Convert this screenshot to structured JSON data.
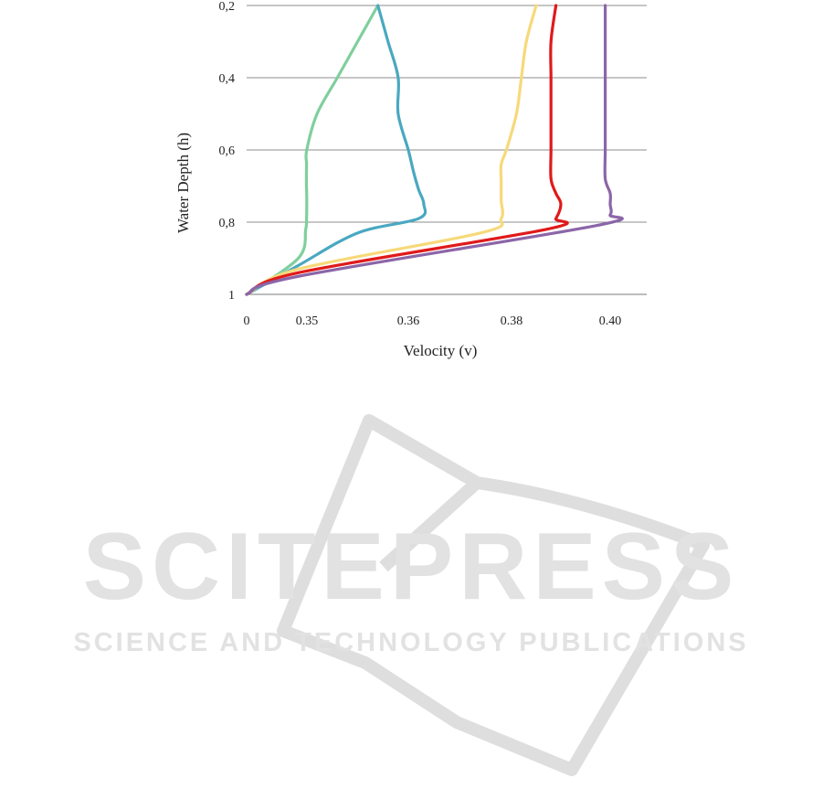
{
  "chart_data": {
    "type": "line",
    "xlabel": "Velocity (v)",
    "ylabel": "Water Depth (h)",
    "x_tick_labels": [
      "0",
      "0.35",
      "0.36",
      "0.38",
      "0.40"
    ],
    "y_tick_labels": [
      "0,2",
      "0,4",
      "0,6",
      "0,8",
      "1"
    ],
    "grid": true,
    "legend": "none",
    "y_inverted": true,
    "series": [
      {
        "color": "#7fcf9c",
        "points": [
          [
            0,
            1.0
          ],
          [
            0.3,
            0.9
          ],
          [
            0.343,
            0.82
          ],
          [
            0.348,
            0.79
          ],
          [
            0.349,
            0.73
          ],
          [
            0.347,
            0.69
          ],
          [
            0.348,
            0.64
          ],
          [
            0.349,
            0.6
          ],
          [
            0.351,
            0.5
          ],
          [
            0.353,
            0.4
          ],
          [
            0.355,
            0.3
          ],
          [
            0.357,
            0.2
          ]
        ]
      },
      {
        "color": "#4aa8c0",
        "points": [
          [
            0,
            1.0
          ],
          [
            0.3,
            0.92
          ],
          [
            0.355,
            0.83
          ],
          [
            0.362,
            0.79
          ],
          [
            0.363,
            0.75
          ],
          [
            0.362,
            0.71
          ],
          [
            0.361,
            0.66
          ],
          [
            0.36,
            0.6
          ],
          [
            0.359,
            0.5
          ],
          [
            0.359,
            0.4
          ],
          [
            0.358,
            0.3
          ],
          [
            0.357,
            0.2
          ]
        ]
      },
      {
        "color": "#f7d97a",
        "points": [
          [
            0,
            1.0
          ],
          [
            0.3,
            0.93
          ],
          [
            0.374,
            0.83
          ],
          [
            0.378,
            0.79
          ],
          [
            0.378,
            0.74
          ],
          [
            0.378,
            0.69
          ],
          [
            0.378,
            0.64
          ],
          [
            0.379,
            0.6
          ],
          [
            0.381,
            0.5
          ],
          [
            0.382,
            0.4
          ],
          [
            0.383,
            0.3
          ],
          [
            0.385,
            0.2
          ]
        ]
      },
      {
        "color": "#e01a1a",
        "points": [
          [
            0,
            1.0
          ],
          [
            0.3,
            0.94
          ],
          [
            0.387,
            0.82
          ],
          [
            0.389,
            0.79
          ],
          [
            0.39,
            0.75
          ],
          [
            0.389,
            0.72
          ],
          [
            0.388,
            0.68
          ],
          [
            0.388,
            0.6
          ],
          [
            0.388,
            0.5
          ],
          [
            0.388,
            0.4
          ],
          [
            0.388,
            0.3
          ],
          [
            0.389,
            0.2
          ]
        ]
      },
      {
        "color": "#8b66a8",
        "points": [
          [
            0,
            1.0
          ],
          [
            0.3,
            0.95
          ],
          [
            0.397,
            0.81
          ],
          [
            0.4,
            0.78
          ],
          [
            0.4,
            0.75
          ],
          [
            0.4,
            0.72
          ],
          [
            0.399,
            0.68
          ],
          [
            0.399,
            0.6
          ],
          [
            0.399,
            0.5
          ],
          [
            0.399,
            0.4
          ],
          [
            0.399,
            0.3
          ],
          [
            0.399,
            0.2
          ]
        ]
      }
    ]
  },
  "watermark": {
    "line1": "SCITEPRESS",
    "line2": "SCIENCE AND TECHNOLOGY PUBLICATIONS"
  }
}
